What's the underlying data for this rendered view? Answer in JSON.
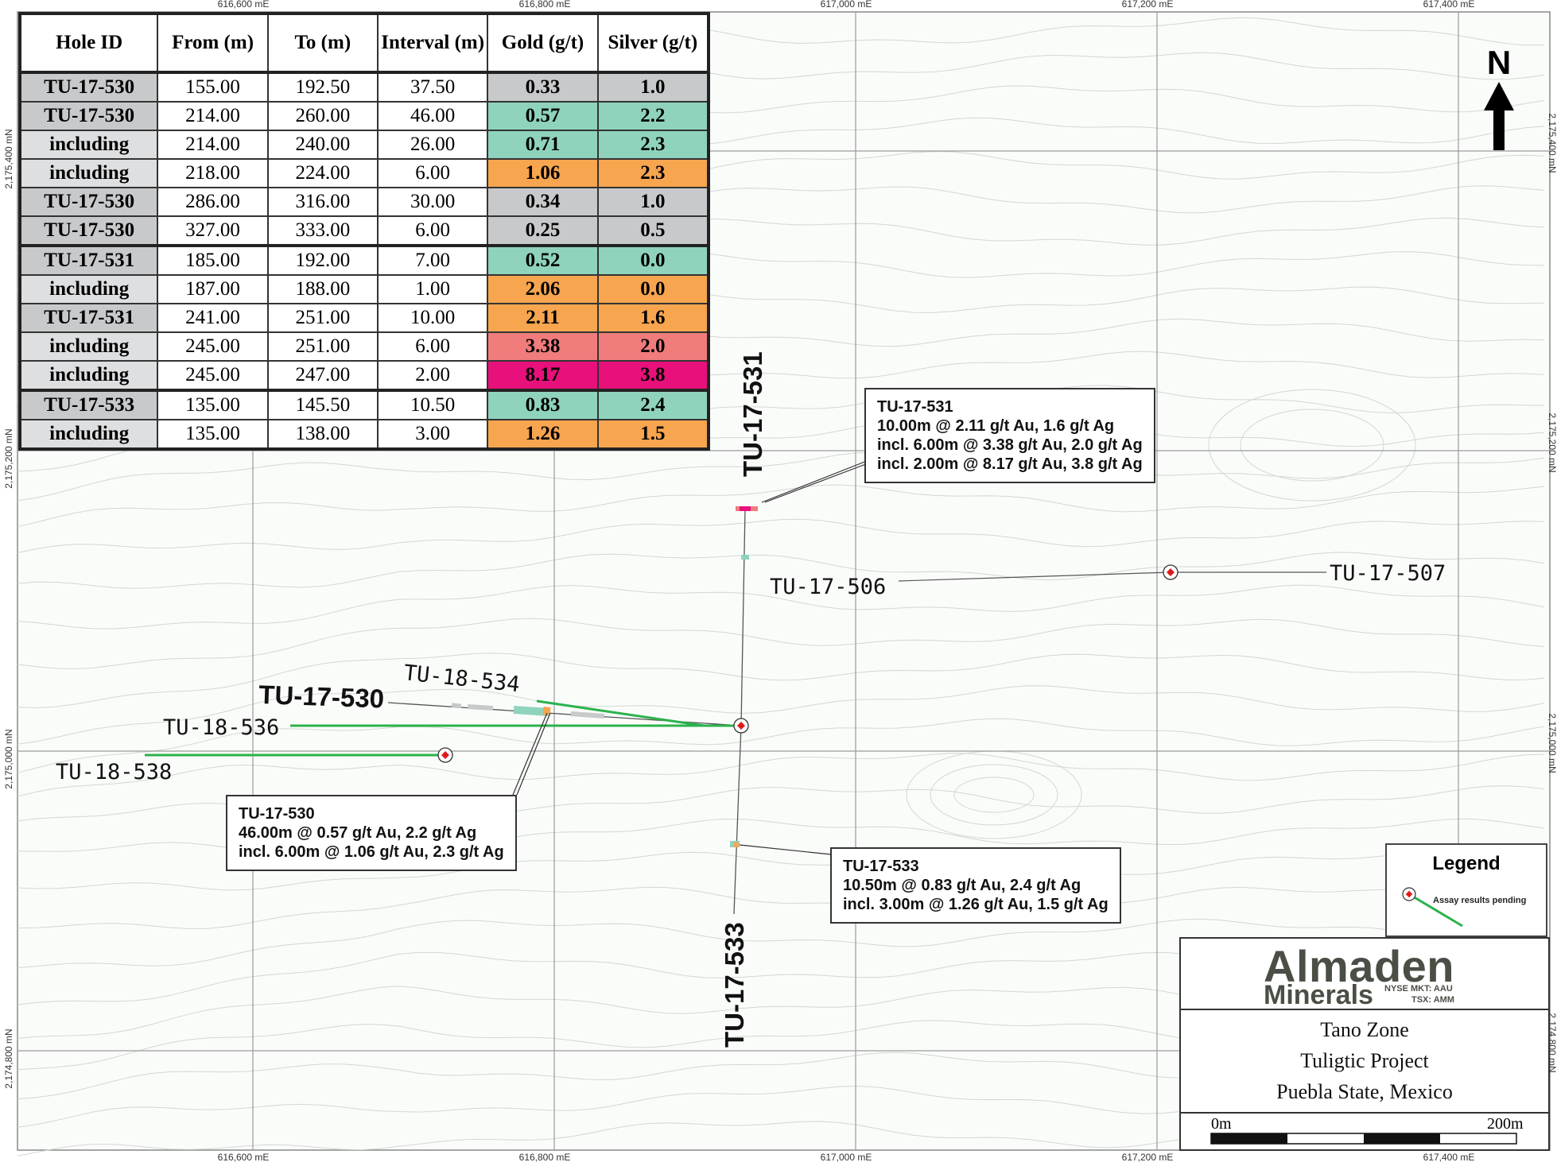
{
  "table": {
    "headers": [
      "Hole ID",
      "From (m)",
      "To (m)",
      "Interval (m)",
      "Gold (g/t)",
      "Silver (g/t)"
    ],
    "rows": [
      {
        "hole": "TU-17-530",
        "from": "155.00",
        "to": "192.50",
        "interval": "37.50",
        "gold": "0.33",
        "silver": "1.0",
        "gold_color": "#c8c9cb",
        "silver_color": "#c8c9cb",
        "group_start": true
      },
      {
        "hole": "TU-17-530",
        "from": "214.00",
        "to": "260.00",
        "interval": "46.00",
        "gold": "0.57",
        "silver": "2.2",
        "gold_color": "#8fd3bc",
        "silver_color": "#8fd3bc"
      },
      {
        "hole": "including",
        "from": "214.00",
        "to": "240.00",
        "interval": "26.00",
        "gold": "0.71",
        "silver": "2.3",
        "gold_color": "#8fd3bc",
        "silver_color": "#8fd3bc"
      },
      {
        "hole": "including",
        "from": "218.00",
        "to": "224.00",
        "interval": "6.00",
        "gold": "1.06",
        "silver": "2.3",
        "gold_color": "#f7a54f",
        "silver_color": "#f7a54f"
      },
      {
        "hole": "TU-17-530",
        "from": "286.00",
        "to": "316.00",
        "interval": "30.00",
        "gold": "0.34",
        "silver": "1.0",
        "gold_color": "#c8c9cb",
        "silver_color": "#c8c9cb"
      },
      {
        "hole": "TU-17-530",
        "from": "327.00",
        "to": "333.00",
        "interval": "6.00",
        "gold": "0.25",
        "silver": "0.5",
        "gold_color": "#c8c9cb",
        "silver_color": "#c8c9cb"
      },
      {
        "hole": "TU-17-531",
        "from": "185.00",
        "to": "192.00",
        "interval": "7.00",
        "gold": "0.52",
        "silver": "0.0",
        "gold_color": "#8fd3bc",
        "silver_color": "#8fd3bc",
        "group_start": true
      },
      {
        "hole": "including",
        "from": "187.00",
        "to": "188.00",
        "interval": "1.00",
        "gold": "2.06",
        "silver": "0.0",
        "gold_color": "#f7a54f",
        "silver_color": "#f7a54f"
      },
      {
        "hole": "TU-17-531",
        "from": "241.00",
        "to": "251.00",
        "interval": "10.00",
        "gold": "2.11",
        "silver": "1.6",
        "gold_color": "#f7a54f",
        "silver_color": "#f7a54f"
      },
      {
        "hole": "including",
        "from": "245.00",
        "to": "251.00",
        "interval": "6.00",
        "gold": "3.38",
        "silver": "2.0",
        "gold_color": "#f07c7c",
        "silver_color": "#f07c7c"
      },
      {
        "hole": "including",
        "from": "245.00",
        "to": "247.00",
        "interval": "2.00",
        "gold": "8.17",
        "silver": "3.8",
        "gold_color": "#e8107a",
        "silver_color": "#e8107a"
      },
      {
        "hole": "TU-17-533",
        "from": "135.00",
        "to": "145.50",
        "interval": "10.50",
        "gold": "0.83",
        "silver": "2.4",
        "gold_color": "#8fd3bc",
        "silver_color": "#8fd3bc",
        "group_start": true
      },
      {
        "hole": "including",
        "from": "135.00",
        "to": "138.00",
        "interval": "3.00",
        "gold": "1.26",
        "silver": "1.5",
        "gold_color": "#f7a54f",
        "silver_color": "#f7a54f"
      }
    ]
  },
  "grid": {
    "eastings": [
      "616,600 mE",
      "616,800 mE",
      "617,000 mE",
      "617,200 mE",
      "617,400 mE"
    ],
    "northings": [
      "2,175,400 mN",
      "2,175,200 mN",
      "2,175,000 mN",
      "2,174,800 mN"
    ]
  },
  "holes": {
    "tu17531": "TU-17-531",
    "tu17530": "TU-17-530",
    "tu17533": "TU-17-533",
    "tu17506": "TU-17-506",
    "tu17507": "TU-17-507",
    "tu18534": "TU-18-534",
    "tu18536": "TU-18-536",
    "tu18538": "TU-18-538"
  },
  "callouts": {
    "c531": {
      "title": "TU-17-531",
      "line1": "10.00m @ 2.11 g/t Au, 1.6 g/t Ag",
      "line2": "incl. 6.00m @ 3.38 g/t Au, 2.0 g/t Ag",
      "line3": "incl. 2.00m @ 8.17 g/t Au, 3.8 g/t Ag"
    },
    "c530": {
      "title": "TU-17-530",
      "line1": "46.00m @ 0.57 g/t Au, 2.2 g/t Ag",
      "line2": "incl. 6.00m @ 1.06 g/t Au, 2.3 g/t Ag"
    },
    "c533": {
      "title": "TU-17-533",
      "line1": "10.50m @ 0.83 g/t Au, 2.4 g/t Ag",
      "line2": "incl. 3.00m @ 1.26 g/t Au, 1.5 g/t Ag"
    }
  },
  "north": "N",
  "legend": {
    "title": "Legend",
    "pending": "Assay results pending",
    "trace_color": "#2bb24c",
    "collar_color": "#e01a1a"
  },
  "title_block": {
    "company": "Almaden",
    "company_sub": "Minerals",
    "nyse": "NYSE MKT: AAU",
    "tsx": "TSX: AMM",
    "line1": "Tano Zone",
    "line2": "Tuligtic Project",
    "line3": "Puebla State, Mexico",
    "scale_start": "0m",
    "scale_end": "200m"
  }
}
